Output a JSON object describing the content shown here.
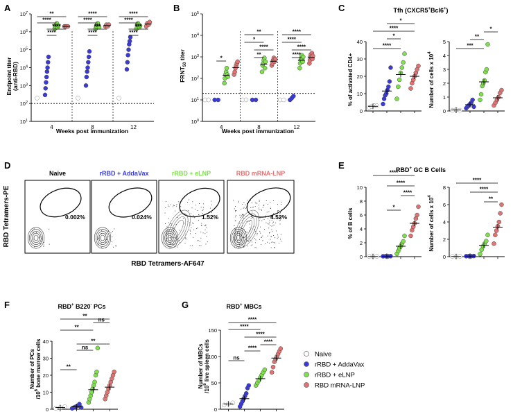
{
  "colors": {
    "naive": "#ffffff",
    "addavax": "#3a3ad8",
    "elnp": "#7ee04a",
    "mrna": "#e07474"
  },
  "legend": [
    {
      "label": "Naive",
      "color": "#ffffff"
    },
    {
      "label": "rRBD + AddaVax",
      "color": "#3a3ad8"
    },
    {
      "label": "rRBD + eLNP",
      "color": "#7ee04a"
    },
    {
      "label": "RBD mRNA-LNP",
      "color": "#e07474"
    }
  ],
  "panel_letters": {
    "A": "A",
    "B": "B",
    "C": "C",
    "D": "D",
    "E": "E",
    "F": "F",
    "G": "G"
  },
  "chart_data": [
    {
      "id": "A",
      "type": "scatter",
      "title": "",
      "ylabel": "Endpoint titer (anti-RBD)",
      "xlabel": "Weeks post immunization",
      "yscale": "log",
      "ylim": [
        10,
        10000000
      ],
      "ytick_labels": [
        "10^7",
        "10^6",
        "10^5",
        "10^4",
        "10^3",
        "10^2",
        "10^1"
      ],
      "groups": [
        "4",
        "8",
        "12"
      ],
      "series": {
        "4": {
          "naive": [
            200
          ],
          "addavax": [
            300,
            700,
            1500,
            3000,
            6000,
            10000,
            20000,
            40000
          ],
          "elnp": [
            1500000,
            2000000,
            2500000,
            3000000,
            1800000,
            2200000
          ],
          "mrna": [
            2000000,
            2000000,
            2000000,
            2000000
          ]
        },
        "8": {
          "naive": [
            200
          ],
          "addavax": [
            1000,
            3000,
            6000,
            10000,
            20000,
            40000,
            80000
          ],
          "elnp": [
            1500000,
            2000000,
            2500000,
            3000000,
            2200000,
            1800000
          ],
          "mrna": [
            2000000,
            2500000,
            2000000,
            2500000
          ]
        },
        "12": {
          "naive": [
            200
          ],
          "addavax": [
            8000,
            20000,
            50000,
            100000,
            200000,
            300000,
            500000
          ],
          "elnp": [
            1500000,
            2500000,
            3000000,
            2000000,
            1800000,
            2200000
          ],
          "mrna": [
            2000000,
            3000000,
            2500000,
            3500000
          ]
        }
      },
      "lod": 100,
      "sig": [
        "**",
        "****",
        "****",
        "****",
        "****",
        "****",
        "***",
        "****",
        "****",
        "****",
        "***",
        "****"
      ]
    },
    {
      "id": "B",
      "type": "scatter",
      "title": "",
      "ylabel": "FRNT50 titer",
      "xlabel": "Weeks post immunization",
      "yscale": "log",
      "ylim": [
        1,
        100000
      ],
      "ytick_labels": [
        "10^5",
        "10^4",
        "10^3",
        "10^2",
        "10^1",
        "10^0"
      ],
      "groups": [
        "4",
        "8",
        "12"
      ],
      "series": {
        "4": {
          "naive": [
            10,
            10
          ],
          "addavax": [
            10,
            10
          ],
          "elnp": [
            60,
            100,
            150,
            200,
            300,
            150,
            120
          ],
          "mrna": [
            150,
            200,
            300,
            400,
            500,
            600
          ]
        },
        "8": {
          "naive": [
            10,
            10
          ],
          "addavax": [
            10,
            10
          ],
          "elnp": [
            200,
            400,
            500,
            700,
            900,
            300,
            600
          ],
          "mrna": [
            400,
            500,
            700,
            900,
            600,
            800
          ]
        },
        "12": {
          "naive": [
            10,
            10
          ],
          "addavax": [
            10,
            12,
            15
          ],
          "elnp": [
            300,
            500,
            700,
            900,
            1200,
            800,
            600,
            1000
          ],
          "mrna": [
            500,
            700,
            1000,
            1300,
            900,
            1500,
            800,
            1100
          ]
        }
      },
      "lod": 20,
      "sig": [
        "*",
        "**",
        "*",
        "****",
        "**",
        "****",
        "****",
        "****",
        "****"
      ]
    },
    {
      "id": "C1",
      "type": "scatter",
      "title": "Tfh (CXCR5+Bcl6+)",
      "ylabel": "% of activated CD4+",
      "yscale": "linear",
      "ylim": [
        0,
        40
      ],
      "yticks": [
        0,
        10,
        20,
        30,
        40
      ],
      "groups": [
        "naive",
        "addavax",
        "elnp",
        "mrna"
      ],
      "values": {
        "naive": [
          2,
          2.5,
          3,
          3
        ],
        "addavax": [
          4,
          7,
          9,
          10,
          12,
          14,
          17,
          25
        ],
        "elnp": [
          7,
          14,
          18,
          22,
          25,
          28,
          33
        ],
        "mrna": [
          13,
          16,
          18,
          20,
          22,
          24,
          26
        ],
        "means": {
          "naive": 2.7,
          "addavax": 11.5,
          "elnp": 21,
          "mrna": 20
        }
      },
      "sig": [
        "*",
        "****",
        "*",
        "****"
      ]
    },
    {
      "id": "C2",
      "type": "scatter",
      "title": "",
      "ylabel": "Number of cells x 10^4",
      "yscale": "linear",
      "ylim": [
        0,
        5
      ],
      "yticks": [
        0,
        1,
        2,
        3,
        4,
        5
      ],
      "groups": [
        "naive",
        "addavax",
        "elnp",
        "mrna"
      ],
      "values": {
        "naive": [
          0.05,
          0.1,
          0.05
        ],
        "addavax": [
          0.2,
          0.3,
          0.4,
          0.5,
          0.6,
          0.8,
          0.3
        ],
        "elnp": [
          0.8,
          1.2,
          1.8,
          2,
          2.2,
          2.8,
          3,
          4.8
        ],
        "mrna": [
          0.4,
          0.6,
          0.8,
          1,
          1.3,
          1.5
        ],
        "means": {
          "naive": 0.07,
          "addavax": 0.45,
          "elnp": 2.1,
          "mrna": 0.95
        }
      },
      "sig": [
        "***",
        "**",
        "*"
      ]
    },
    {
      "id": "D",
      "type": "table",
      "title": "Flow cytometry plots",
      "columns": [
        "Naive",
        "rRBD + AddaVax",
        "rRBD + eLNP",
        "RBD mRNA-LNP"
      ],
      "column_colors": [
        "#000000",
        "#3a3ad8",
        "#7ee04a",
        "#e07474"
      ],
      "percentages": [
        "0.002%",
        "0.024%",
        "1.52%",
        "4.52%"
      ],
      "xlabel": "RBD Tetramers-AF647",
      "ylabel": "RBD Tetramers-PE"
    },
    {
      "id": "E1",
      "type": "scatter",
      "title": "RBD+ GC B Cells",
      "ylabel": "% of B cells",
      "yscale": "linear",
      "ylim": [
        0,
        10
      ],
      "yticks": [
        0,
        2,
        4,
        6,
        8,
        10
      ],
      "groups": [
        "naive",
        "addavax",
        "elnp",
        "mrna"
      ],
      "values": {
        "naive": [
          0.02,
          0.02,
          0.03
        ],
        "addavax": [
          0.05,
          0.06,
          0.05,
          0.07
        ],
        "elnp": [
          0.4,
          0.8,
          1.2,
          1.5,
          1.9,
          2.2,
          3
        ],
        "mrna": [
          3,
          3.8,
          4.3,
          4.8,
          5.5,
          6,
          7.2
        ],
        "means": {
          "naive": 0.02,
          "addavax": 0.06,
          "elnp": 1.5,
          "mrna": 4.8
        }
      },
      "sig": [
        "****",
        "****",
        "*",
        "****"
      ]
    },
    {
      "id": "E2",
      "type": "scatter",
      "title": "",
      "ylabel": "Number of cells x 10^4",
      "yscale": "linear",
      "ylim": [
        0,
        8
      ],
      "yticks": [
        0,
        2,
        4,
        6,
        8
      ],
      "groups": [
        "naive",
        "addavax",
        "elnp",
        "mrna"
      ],
      "values": {
        "naive": [
          0.02,
          0.02,
          0.03
        ],
        "addavax": [
          0.05,
          0.06,
          0.05,
          0.07
        ],
        "elnp": [
          0.3,
          0.8,
          1.2,
          1.5,
          1.8,
          2.5
        ],
        "mrna": [
          1.5,
          2.5,
          3,
          3.5,
          4,
          5,
          6
        ],
        "means": {
          "naive": 0.02,
          "addavax": 0.06,
          "elnp": 1.3,
          "mrna": 3.4
        }
      },
      "sig": [
        "****",
        "****",
        "**"
      ]
    },
    {
      "id": "F",
      "type": "scatter",
      "title": "RBD+ B220- PCs",
      "ylabel": "Number of PCs /10^6 bone marrow cells",
      "yscale": "linear",
      "ylim": [
        0,
        40
      ],
      "yticks": [
        0,
        10,
        20,
        30,
        40
      ],
      "groups": [
        "naive",
        "addavax",
        "elnp",
        "mrna"
      ],
      "values": {
        "naive": [
          0.5,
          1,
          1.5
        ],
        "addavax": [
          0.5,
          1,
          1.5,
          2,
          3,
          1
        ],
        "elnp": [
          4,
          6,
          8,
          10,
          12,
          14,
          16,
          20,
          22,
          36
        ],
        "mrna": [
          6,
          8,
          10,
          12,
          14,
          16,
          18,
          20,
          22
        ],
        "means": {
          "naive": 1,
          "addavax": 1.5,
          "elnp": 11.5,
          "mrna": 13
        }
      },
      "sig": [
        "**",
        "**",
        "ns",
        "**",
        "ns",
        "**"
      ]
    },
    {
      "id": "G",
      "type": "scatter",
      "title": "RBD+ MBCs",
      "ylabel": "Number of MBCs /10^6 live spleen cells",
      "yscale": "linear",
      "ylim": [
        0,
        150
      ],
      "yticks": [
        0,
        50,
        100,
        150
      ],
      "groups": [
        "naive",
        "addavax",
        "elnp",
        "mrna"
      ],
      "values": {
        "naive": [
          8,
          10,
          12
        ],
        "addavax": [
          5,
          10,
          15,
          20,
          25,
          30,
          40,
          45
        ],
        "elnp": [
          45,
          50,
          55,
          60,
          65,
          70,
          75
        ],
        "mrna": [
          70,
          80,
          90,
          95,
          100,
          105,
          110,
          115
        ],
        "means": {
          "naive": 10,
          "addavax": 20,
          "elnp": 58,
          "mrna": 97
        }
      },
      "sig": [
        "****",
        "****",
        "****",
        "****",
        "****",
        "ns"
      ]
    }
  ],
  "text": {
    "A_ylabel": "Endpoint titer",
    "A_ylabel2": "(anti-RBD)",
    "A_xlabel": "Weeks post immunization",
    "B_ylabel": "FRNT",
    "B_ylabel_sub": "50",
    "B_ylabel_tail": " titer",
    "B_xlabel": "Weeks post immunization",
    "C_title": "Tfh (CXCR5",
    "C_title_sup1": "+",
    "C_title_mid": "Bcl6",
    "C_title_sup2": "+",
    "C_title_end": ")",
    "C1_ylabel": "% of activated CD4+",
    "C2_ylabel": "Number of cells x 10",
    "C2_ylabel_sup": "4",
    "D_xlabel": "RBD Tetramers-AF647",
    "D_ylabel": "RBD Tetramers-PE",
    "E_title": "RBD",
    "E_title_sup": "+",
    "E_title_end": " GC B Cells",
    "E1_ylabel": "% of B cells",
    "E2_ylabel": "Number of cells x 10",
    "E2_ylabel_sup": "4",
    "F_title": "RBD",
    "F_title_sup": "+",
    "F_title_mid": " B220",
    "F_title_sup2": "-",
    "F_title_end": " PCs",
    "F_ylabel1": "Number of PCs",
    "F_ylabel2": "/10",
    "F_ylabel2_sup": "6",
    "F_ylabel2_end": " bone marrow cells",
    "G_title": "RBD",
    "G_title_sup": "+",
    "G_title_end": " MBCs",
    "G_ylabel1": "Number of MBCs",
    "G_ylabel2": "/10",
    "G_ylabel2_sup": "6",
    "G_ylabel2_end": " live spleen cells"
  }
}
